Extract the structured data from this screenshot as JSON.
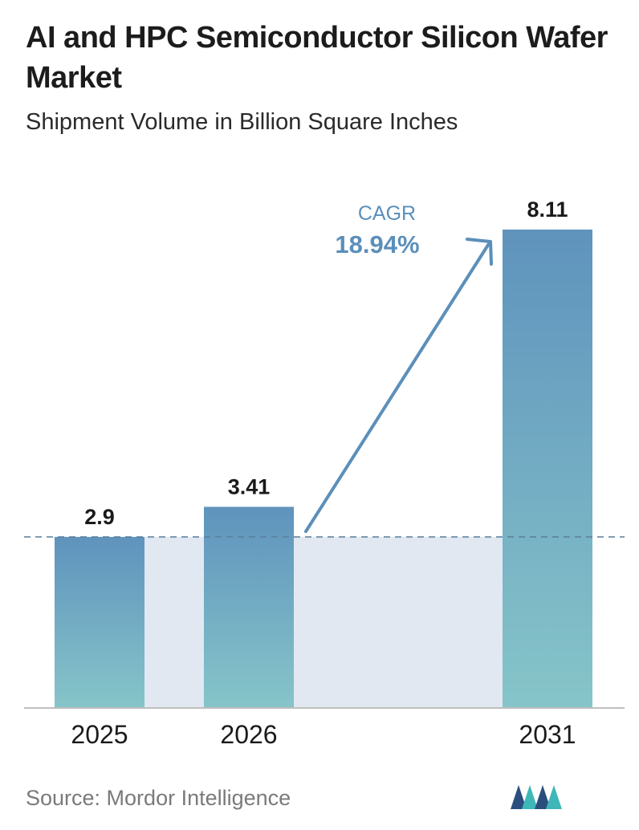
{
  "header": {
    "title": "AI and HPC Semiconductor Silicon Wafer Market",
    "subtitle": "Shipment Volume in Billion Square Inches"
  },
  "chart_data": {
    "type": "bar",
    "title": "AI and HPC Semiconductor Silicon Wafer Market",
    "subtitle": "Shipment Volume in Billion Square Inches",
    "categories": [
      "2025",
      "2026",
      "2031"
    ],
    "values": [
      2.9,
      3.41,
      8.11
    ],
    "value_labels": [
      "2.9",
      "3.41",
      "8.11"
    ],
    "ylim": [
      0,
      8.11
    ],
    "grid": false,
    "reference_line": {
      "value": 2.9,
      "style": "dashed"
    },
    "annotation": {
      "label": "CAGR",
      "value": "18.94%"
    }
  },
  "footer": {
    "source": "Source:  Mordor Intelligence"
  },
  "colors": {
    "bar_top": "#5f93bd",
    "bar_bottom": "#86c5c9",
    "band": "#e1e8f1",
    "arrow": "#5b8fba",
    "cagr_text": "#5b8fba",
    "logo_dark": "#2b4e7e",
    "logo_teal": "#3fb6b8"
  }
}
